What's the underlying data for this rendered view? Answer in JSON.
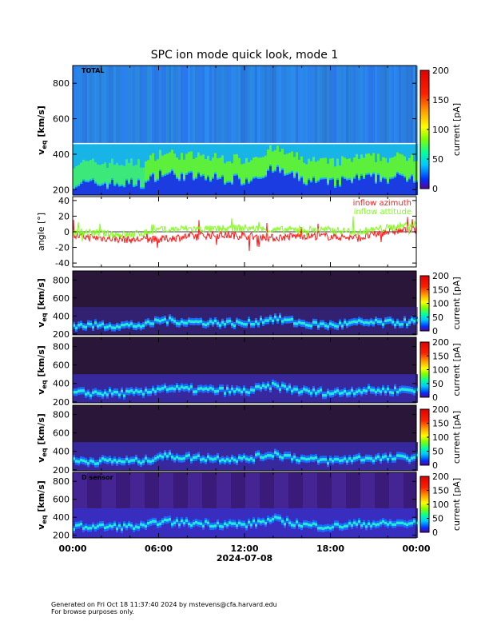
{
  "title": "SPC ion mode quick look, mode 1",
  "footer": {
    "line1": "Generated on Fri Oct 18 11:37:40 2024 by mstevens@cfa.harvard.edu",
    "line2": "For browse purposes only."
  },
  "colors": {
    "azimuth": "#ff1a1a",
    "attitude": "#7fff1a",
    "zero_line": "#000000"
  },
  "chart_data": [
    {
      "type": "heatmap",
      "panel_label": "TOTAL",
      "ylabel": "v",
      "ylabel_sub": "eq",
      "ylabel_unit": " [km/s]",
      "yticks": [
        200,
        400,
        600,
        800
      ],
      "ylim": [
        170,
        900
      ],
      "colorbar": {
        "label": "current [pA]",
        "ticks": [
          0,
          50,
          100,
          150,
          200
        ],
        "range": [
          0,
          200
        ]
      },
      "core_speed_kms": {
        "x_hours": [
          0,
          2,
          4,
          5,
          6,
          8,
          10,
          12,
          14,
          16,
          18,
          20,
          22,
          24
        ],
        "y": [
          300,
          300,
          300,
          300,
          360,
          340,
          330,
          320,
          380,
          320,
          300,
          330,
          330,
          340
        ]
      }
    },
    {
      "type": "line",
      "ylabel": "angle [°]",
      "yticks": [
        -40,
        -20,
        0,
        20,
        40
      ],
      "ylim": [
        -45,
        45
      ],
      "series": [
        {
          "name": "inflow azimuth",
          "color": "#ff1a1a",
          "x_hours": [
            0,
            2,
            4,
            6,
            8,
            10,
            12,
            14,
            16,
            18,
            20,
            22,
            24
          ],
          "y": [
            -5,
            -8,
            -10,
            -10,
            -6,
            -4,
            -5,
            -8,
            -5,
            -6,
            -8,
            0,
            3
          ]
        },
        {
          "name": "inflow attitude",
          "color": "#7fff1a",
          "x_hours": [
            0,
            2,
            4,
            6,
            8,
            10,
            12,
            14,
            16,
            18,
            20,
            22,
            24
          ],
          "y": [
            0,
            -2,
            -4,
            2,
            4,
            3,
            5,
            2,
            3,
            2,
            0,
            5,
            10
          ]
        }
      ]
    },
    {
      "type": "heatmap",
      "panel_label": "",
      "ylabel": "v",
      "ylabel_sub": "eq",
      "ylabel_unit": " [km/s]",
      "yticks": [
        200,
        400,
        600,
        800
      ],
      "ylim": [
        190,
        900
      ],
      "colorbar": {
        "label": "current [pA]",
        "ticks": [
          0,
          50,
          100,
          150,
          200
        ],
        "range": [
          0,
          200
        ]
      }
    },
    {
      "type": "heatmap",
      "panel_label": "",
      "ylabel": "v",
      "ylabel_sub": "eq",
      "ylabel_unit": " [km/s]",
      "yticks": [
        200,
        400,
        600,
        800
      ],
      "ylim": [
        190,
        900
      ],
      "colorbar": {
        "label": "current [pA]",
        "ticks": [
          0,
          50,
          100,
          150,
          200
        ],
        "range": [
          0,
          200
        ]
      }
    },
    {
      "type": "heatmap",
      "panel_label": "",
      "ylabel": "v",
      "ylabel_sub": "eq",
      "ylabel_unit": " [km/s]",
      "yticks": [
        200,
        400,
        600,
        800
      ],
      "ylim": [
        190,
        900
      ],
      "colorbar": {
        "label": "current [pA]",
        "ticks": [
          0,
          50,
          100,
          150,
          200
        ],
        "range": [
          0,
          200
        ]
      }
    },
    {
      "type": "heatmap",
      "panel_label": "D sensor",
      "ylabel": "v",
      "ylabel_sub": "eq",
      "ylabel_unit": " [km/s]",
      "yticks": [
        200,
        400,
        600,
        800
      ],
      "ylim": [
        170,
        900
      ],
      "colorbar": {
        "label": "current [pA]",
        "ticks": [
          0,
          50,
          100,
          150,
          200
        ],
        "range": [
          0,
          200
        ]
      }
    }
  ],
  "x_axis": {
    "ticks": [
      "00:00",
      "06:00",
      "12:00",
      "18:00",
      "00:00"
    ],
    "date_label": "2024-07-08"
  }
}
